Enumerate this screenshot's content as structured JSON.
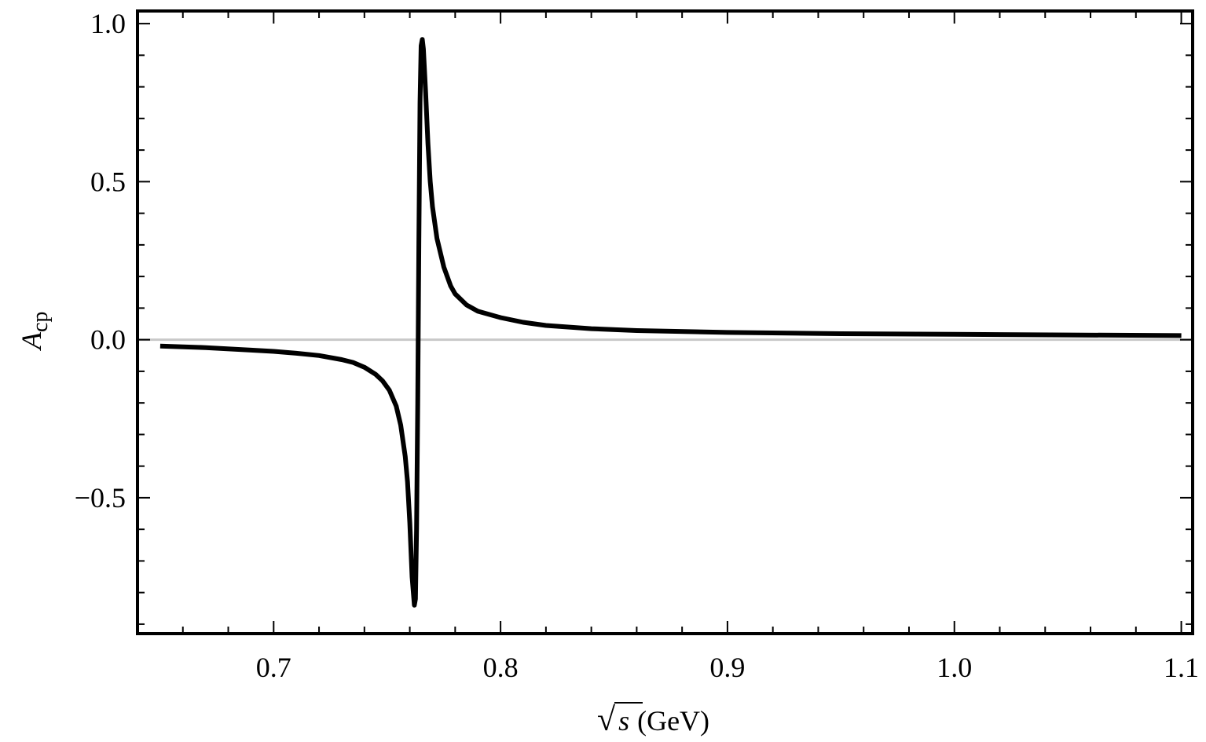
{
  "chart_data": {
    "type": "line",
    "title": "",
    "xlabel_prefix": "√",
    "xlabel_var": "s",
    "xlabel_unit": "(GeV)",
    "ylabel_main": "A",
    "ylabel_sub": "cp",
    "xlim": [
      0.64,
      1.105
    ],
    "ylim": [
      -0.93,
      1.04
    ],
    "x_ticks": [
      0.7,
      0.8,
      0.9,
      1.0,
      1.1
    ],
    "x_tick_labels": [
      "0.7",
      "0.8",
      "0.9",
      "1.0",
      "1.1"
    ],
    "y_ticks": [
      -0.5,
      0.0,
      0.5,
      1.0
    ],
    "y_tick_labels": [
      "−0.5",
      "0.0",
      "0.5",
      "1.0"
    ],
    "reference_line": {
      "y": 0.0,
      "color": "#c8c8c8"
    },
    "grid": false,
    "series": [
      {
        "color": "#000000",
        "x": [
          0.65,
          0.67,
          0.69,
          0.7,
          0.71,
          0.72,
          0.73,
          0.735,
          0.74,
          0.745,
          0.748,
          0.751,
          0.754,
          0.756,
          0.758,
          0.759,
          0.76,
          0.761,
          0.762,
          0.7625,
          0.763,
          0.7635,
          0.764,
          0.7645,
          0.765,
          0.7655,
          0.766,
          0.767,
          0.768,
          0.769,
          0.77,
          0.772,
          0.775,
          0.778,
          0.78,
          0.785,
          0.79,
          0.8,
          0.81,
          0.82,
          0.84,
          0.86,
          0.9,
          0.95,
          1.0,
          1.05,
          1.1
        ],
        "y": [
          -0.02,
          -0.025,
          -0.033,
          -0.037,
          -0.043,
          -0.05,
          -0.063,
          -0.072,
          -0.087,
          -0.11,
          -0.13,
          -0.16,
          -0.21,
          -0.27,
          -0.37,
          -0.45,
          -0.58,
          -0.75,
          -0.84,
          -0.82,
          -0.6,
          -0.2,
          0.3,
          0.75,
          0.93,
          0.95,
          0.92,
          0.78,
          0.62,
          0.5,
          0.42,
          0.32,
          0.23,
          0.17,
          0.145,
          0.11,
          0.09,
          0.07,
          0.055,
          0.045,
          0.035,
          0.029,
          0.023,
          0.019,
          0.017,
          0.015,
          0.013
        ]
      }
    ]
  }
}
